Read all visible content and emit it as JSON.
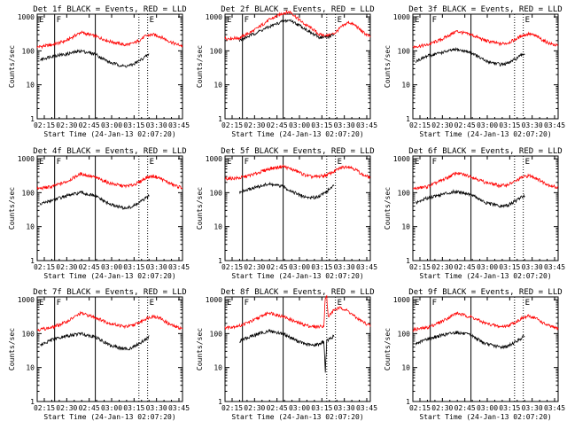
{
  "figure": {
    "x_axis_title": "Start Time (24-Jan-13 02:07:20)",
    "y_axis_title": "Counts/sec",
    "x_ticks": [
      "02:15",
      "02:30",
      "02:45",
      "03:00",
      "03:15",
      "03:30",
      "03:45"
    ],
    "y_ticks": [
      "1",
      "10",
      "100",
      "1000"
    ],
    "marker_letters": [
      "E",
      "F",
      "E"
    ],
    "colors": {
      "events": "#000000",
      "lld": "#ff0000",
      "axes": "#000000"
    }
  },
  "chart_data": [
    {
      "type": "line",
      "title": "Det 1f BLACK = Events, RED = LLD",
      "xlabel": "Start Time (24-Jan-13 02:07:20)",
      "ylabel": "Counts/sec",
      "x_unit": "minutes after 02:07:20",
      "xlim": [
        0,
        100
      ],
      "ylim": [
        1,
        1200
      ],
      "y_scale": "log",
      "vlines": {
        "solid": [
          12,
          40
        ],
        "dotted": [
          70,
          76
        ]
      },
      "series": [
        {
          "name": "LLD",
          "color": "#ff0000",
          "x": [
            0,
            10,
            20,
            30,
            40,
            50,
            55,
            60,
            65,
            70,
            75,
            80,
            85,
            90,
            95,
            100
          ],
          "y": [
            130,
            150,
            200,
            350,
            270,
            190,
            170,
            150,
            160,
            200,
            280,
            300,
            260,
            200,
            160,
            140
          ]
        },
        {
          "name": "Events",
          "color": "#000000",
          "x": [
            2,
            10,
            20,
            30,
            40,
            50,
            55,
            60,
            65,
            70,
            75,
            77
          ],
          "y": [
            55,
            70,
            80,
            100,
            80,
            45,
            40,
            35,
            38,
            50,
            70,
            80
          ]
        }
      ]
    },
    {
      "type": "line",
      "title": "Det 2f BLACK = Events, RED = LLD",
      "xlabel": "Start Time (24-Jan-13 02:07:20)",
      "ylabel": "Counts/sec",
      "x_unit": "minutes after 02:07:20",
      "xlim": [
        0,
        100
      ],
      "ylim": [
        1,
        1200
      ],
      "y_scale": "log",
      "vlines": {
        "solid": [
          12,
          40
        ],
        "dotted": [
          70,
          76
        ]
      },
      "series": [
        {
          "name": "LLD",
          "color": "#ff0000",
          "x": [
            0,
            10,
            20,
            30,
            40,
            45,
            50,
            55,
            60,
            65,
            70,
            75,
            80,
            85,
            90,
            95,
            100
          ],
          "y": [
            230,
            240,
            400,
            800,
            1300,
            1400,
            900,
            600,
            450,
            300,
            280,
            320,
            500,
            700,
            550,
            350,
            260
          ]
        },
        {
          "name": "Events",
          "color": "#000000",
          "x": [
            10,
            20,
            30,
            40,
            45,
            50,
            55,
            60,
            65,
            70,
            75
          ],
          "y": [
            200,
            320,
            500,
            750,
            800,
            600,
            450,
            320,
            250,
            250,
            300
          ]
        }
      ]
    },
    {
      "type": "line",
      "title": "Det 3f BLACK = Events, RED = LLD",
      "xlabel": "Start Time (24-Jan-13 02:07:20)",
      "ylabel": "Counts/sec",
      "x_unit": "minutes after 02:07:20",
      "xlim": [
        0,
        100
      ],
      "ylim": [
        1,
        1200
      ],
      "y_scale": "log",
      "vlines": {
        "solid": [
          12,
          40
        ],
        "dotted": [
          70,
          76
        ]
      },
      "series": [
        {
          "name": "LLD",
          "color": "#ff0000",
          "x": [
            0,
            10,
            20,
            30,
            40,
            50,
            55,
            60,
            65,
            70,
            75,
            80,
            85,
            90,
            95,
            100
          ],
          "y": [
            130,
            150,
            220,
            380,
            300,
            200,
            180,
            160,
            170,
            210,
            280,
            320,
            270,
            200,
            160,
            140
          ]
        },
        {
          "name": "Events",
          "color": "#000000",
          "x": [
            2,
            10,
            20,
            30,
            40,
            50,
            55,
            60,
            65,
            70,
            75,
            77
          ],
          "y": [
            50,
            70,
            90,
            110,
            90,
            50,
            45,
            40,
            42,
            55,
            75,
            85
          ]
        }
      ]
    },
    {
      "type": "line",
      "title": "Det 4f BLACK = Events, RED = LLD",
      "xlabel": "Start Time (24-Jan-13 02:07:20)",
      "ylabel": "Counts/sec",
      "x_unit": "minutes after 02:07:20",
      "xlim": [
        0,
        100
      ],
      "ylim": [
        1,
        1200
      ],
      "y_scale": "log",
      "vlines": {
        "solid": [
          12,
          40
        ],
        "dotted": [
          70,
          76
        ]
      },
      "series": [
        {
          "name": "LLD",
          "color": "#ff0000",
          "x": [
            0,
            10,
            20,
            30,
            40,
            50,
            55,
            60,
            65,
            70,
            75,
            80,
            85,
            90,
            95,
            100
          ],
          "y": [
            130,
            150,
            210,
            360,
            280,
            190,
            170,
            155,
            165,
            200,
            280,
            310,
            260,
            200,
            160,
            140
          ]
        },
        {
          "name": "Events",
          "color": "#000000",
          "x": [
            2,
            10,
            20,
            30,
            40,
            50,
            55,
            60,
            65,
            70,
            75,
            77
          ],
          "y": [
            45,
            60,
            80,
            100,
            80,
            45,
            40,
            35,
            38,
            50,
            70,
            80
          ]
        }
      ]
    },
    {
      "type": "line",
      "title": "Det 5f BLACK = Events, RED = LLD",
      "xlabel": "Start Time (24-Jan-13 02:07:20)",
      "ylabel": "Counts/sec",
      "x_unit": "minutes after 02:07:20",
      "xlim": [
        0,
        100
      ],
      "ylim": [
        1,
        1200
      ],
      "y_scale": "log",
      "vlines": {
        "solid": [
          12,
          40
        ],
        "dotted": [
          70,
          76
        ]
      },
      "series": [
        {
          "name": "LLD",
          "color": "#ff0000",
          "x": [
            0,
            10,
            20,
            30,
            40,
            50,
            55,
            60,
            65,
            70,
            75,
            80,
            85,
            90,
            95,
            100
          ],
          "y": [
            260,
            270,
            350,
            500,
            600,
            420,
            330,
            290,
            300,
            330,
            420,
            550,
            600,
            480,
            330,
            280
          ]
        },
        {
          "name": "Events",
          "color": "#000000",
          "x": [
            10,
            20,
            30,
            40,
            50,
            55,
            60,
            65,
            70,
            75
          ],
          "y": [
            100,
            140,
            180,
            150,
            90,
            75,
            70,
            80,
            110,
            160
          ]
        }
      ]
    },
    {
      "type": "line",
      "title": "Det 6f BLACK = Events, RED = LLD",
      "xlabel": "Start Time (24-Jan-13 02:07:20)",
      "ylabel": "Counts/sec",
      "x_unit": "minutes after 02:07:20",
      "xlim": [
        0,
        100
      ],
      "ylim": [
        1,
        1200
      ],
      "y_scale": "log",
      "vlines": {
        "solid": [
          12,
          40
        ],
        "dotted": [
          70,
          76
        ]
      },
      "series": [
        {
          "name": "LLD",
          "color": "#ff0000",
          "x": [
            0,
            10,
            20,
            30,
            40,
            50,
            55,
            60,
            65,
            70,
            75,
            80,
            85,
            90,
            95,
            100
          ],
          "y": [
            130,
            150,
            230,
            380,
            300,
            200,
            180,
            160,
            170,
            210,
            280,
            320,
            270,
            200,
            160,
            140
          ]
        },
        {
          "name": "Events",
          "color": "#000000",
          "x": [
            2,
            10,
            20,
            30,
            40,
            50,
            55,
            60,
            65,
            70,
            75,
            77
          ],
          "y": [
            50,
            70,
            90,
            110,
            90,
            50,
            45,
            40,
            42,
            55,
            75,
            85
          ]
        }
      ]
    },
    {
      "type": "line",
      "title": "Det 7f BLACK = Events, RED = LLD",
      "xlabel": "Start Time (24-Jan-13 02:07:20)",
      "ylabel": "Counts/sec",
      "x_unit": "minutes after 02:07:20",
      "xlim": [
        0,
        100
      ],
      "ylim": [
        1,
        1200
      ],
      "y_scale": "log",
      "vlines": {
        "solid": [
          12,
          40
        ],
        "dotted": [
          70,
          76
        ]
      },
      "series": [
        {
          "name": "LLD",
          "color": "#ff0000",
          "x": [
            0,
            10,
            20,
            30,
            40,
            50,
            55,
            60,
            65,
            70,
            75,
            80,
            85,
            90,
            95,
            100
          ],
          "y": [
            130,
            150,
            220,
            400,
            300,
            200,
            180,
            160,
            170,
            210,
            280,
            330,
            280,
            200,
            160,
            140
          ]
        },
        {
          "name": "Events",
          "color": "#000000",
          "x": [
            2,
            10,
            20,
            30,
            40,
            50,
            55,
            60,
            65,
            70,
            75,
            77
          ],
          "y": [
            45,
            65,
            85,
            100,
            80,
            45,
            40,
            35,
            38,
            50,
            70,
            80
          ]
        }
      ]
    },
    {
      "type": "line",
      "title": "Det 8f BLACK = Events, RED = LLD",
      "xlabel": "Start Time (24-Jan-13 02:07:20)",
      "ylabel": "Counts/sec",
      "x_unit": "minutes after 02:07:20",
      "xlim": [
        0,
        100
      ],
      "ylim": [
        1,
        1200
      ],
      "y_scale": "log",
      "vlines": {
        "solid": [
          12,
          40
        ],
        "dotted": [
          70,
          76
        ]
      },
      "series": [
        {
          "name": "LLD",
          "color": "#ff0000",
          "x": [
            0,
            10,
            20,
            30,
            40,
            50,
            55,
            60,
            65,
            68,
            69,
            70,
            71,
            73,
            75,
            80,
            85,
            90,
            95,
            100
          ],
          "y": [
            150,
            170,
            250,
            420,
            320,
            210,
            180,
            160,
            160,
            170,
            1200,
            1200,
            300,
            400,
            500,
            580,
            450,
            300,
            220,
            170
          ]
        },
        {
          "name": "Events",
          "color": "#000000",
          "x": [
            10,
            20,
            30,
            40,
            50,
            55,
            60,
            65,
            68,
            69,
            70,
            72,
            75
          ],
          "y": [
            60,
            90,
            120,
            100,
            60,
            50,
            45,
            50,
            60,
            8,
            60,
            70,
            85
          ]
        }
      ]
    },
    {
      "type": "line",
      "title": "Det 9f BLACK = Events, RED = LLD",
      "xlabel": "Start Time (24-Jan-13 02:07:20)",
      "ylabel": "Counts/sec",
      "x_unit": "minutes after 02:07:20",
      "xlim": [
        0,
        100
      ],
      "ylim": [
        1,
        1200
      ],
      "y_scale": "log",
      "vlines": {
        "solid": [
          12,
          40
        ],
        "dotted": [
          70,
          76
        ]
      },
      "series": [
        {
          "name": "LLD",
          "color": "#ff0000",
          "x": [
            0,
            10,
            20,
            30,
            40,
            50,
            55,
            60,
            65,
            70,
            75,
            80,
            85,
            90,
            95,
            100
          ],
          "y": [
            130,
            150,
            230,
            400,
            310,
            200,
            180,
            160,
            170,
            210,
            280,
            330,
            280,
            200,
            160,
            140
          ]
        },
        {
          "name": "Events",
          "color": "#000000",
          "x": [
            2,
            10,
            20,
            30,
            40,
            50,
            55,
            60,
            65,
            70,
            75,
            77
          ],
          "y": [
            50,
            70,
            90,
            110,
            90,
            50,
            45,
            40,
            42,
            55,
            75,
            85
          ]
        }
      ]
    }
  ]
}
